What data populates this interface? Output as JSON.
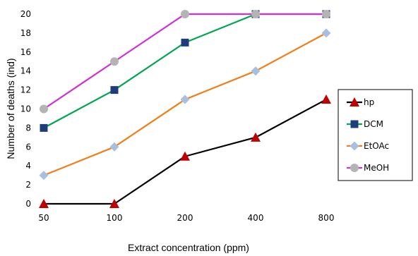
{
  "chart_data": {
    "type": "line",
    "title": "",
    "xlabel": "Extract concentration (ppm)",
    "ylabel": "Number of deaths (ind)",
    "categories": [
      "50",
      "100",
      "200",
      "400",
      "800"
    ],
    "ylim": [
      0,
      20
    ],
    "yticks": [
      0,
      2,
      4,
      6,
      8,
      10,
      12,
      14,
      16,
      18,
      20
    ],
    "ytick_labels": [
      "0",
      "2",
      "4",
      "6",
      "8",
      "10",
      "12",
      "14",
      "16",
      "18",
      "20"
    ],
    "grid": false,
    "legend_position": "right",
    "series": [
      {
        "name": "hp",
        "values": [
          0,
          0,
          5,
          7,
          11
        ],
        "color": "#000000",
        "marker_color": "#c00000",
        "marker": "triangle"
      },
      {
        "name": "DCM",
        "values": [
          8,
          12,
          17,
          20,
          20
        ],
        "color": "#00a651",
        "marker_color": "#1f3d7a",
        "marker": "square"
      },
      {
        "name": "EtOAc",
        "values": [
          3,
          6,
          11,
          14,
          18
        ],
        "color": "#f07f1a",
        "marker_color": "#a9bfe0",
        "marker": "diamond"
      },
      {
        "name": "MeOH",
        "values": [
          10,
          15,
          20,
          20,
          20
        ],
        "color": "#d12fd1",
        "marker_color": "#b4b4b4",
        "marker": "circle"
      }
    ]
  }
}
